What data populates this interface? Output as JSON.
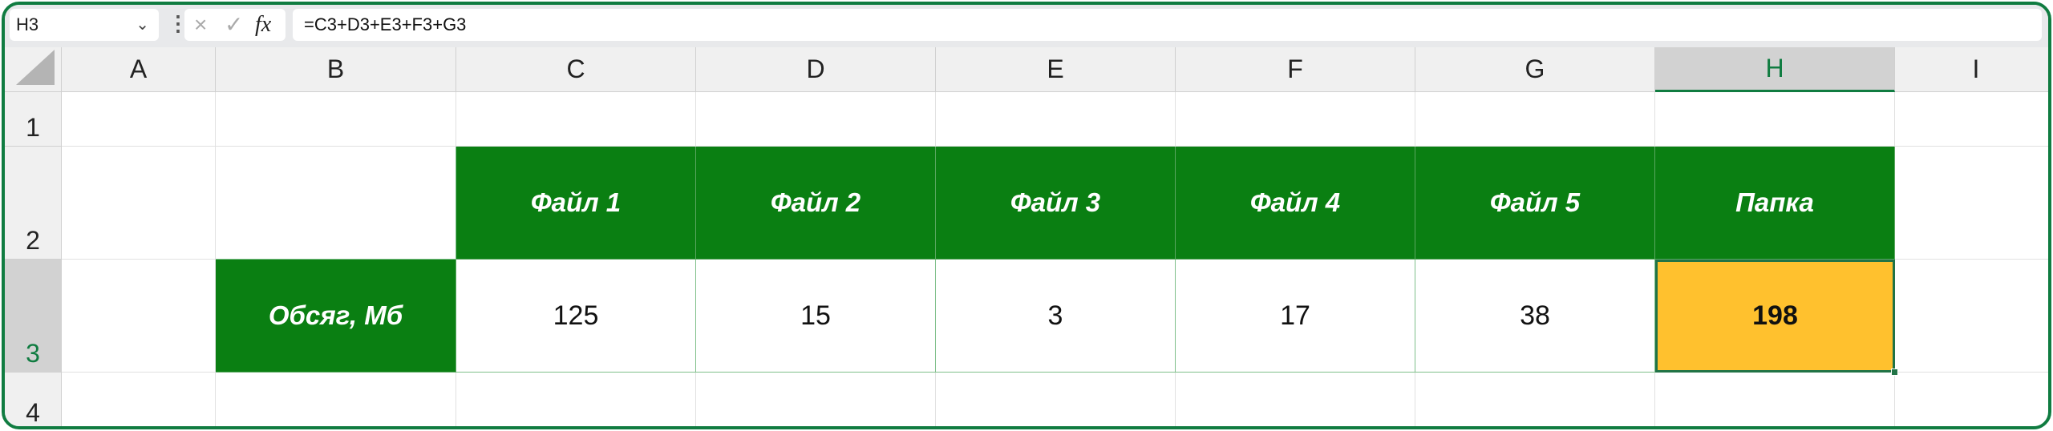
{
  "toolbar": {
    "name_box": "H3",
    "formula": "=C3+D3+E3+F3+G3",
    "cancel_icon": "×",
    "enter_icon": "✓",
    "fx_label": "fx"
  },
  "columns": [
    "A",
    "B",
    "C",
    "D",
    "E",
    "F",
    "G",
    "H",
    "I"
  ],
  "rows": [
    "1",
    "2",
    "3",
    "4"
  ],
  "selected": {
    "column": "H",
    "row": "3"
  },
  "table": {
    "headers": [
      "Файл 1",
      "Файл 2",
      "Файл 3",
      "Файл 4",
      "Файл 5",
      "Папка"
    ],
    "row_label": "Обсяг, Мб",
    "values": [
      "125",
      "15",
      "3",
      "17",
      "38"
    ],
    "total": "198"
  },
  "colors": {
    "header_fill": "#0a7f12",
    "total_fill": "#ffc12e",
    "accent": "#107c41"
  }
}
